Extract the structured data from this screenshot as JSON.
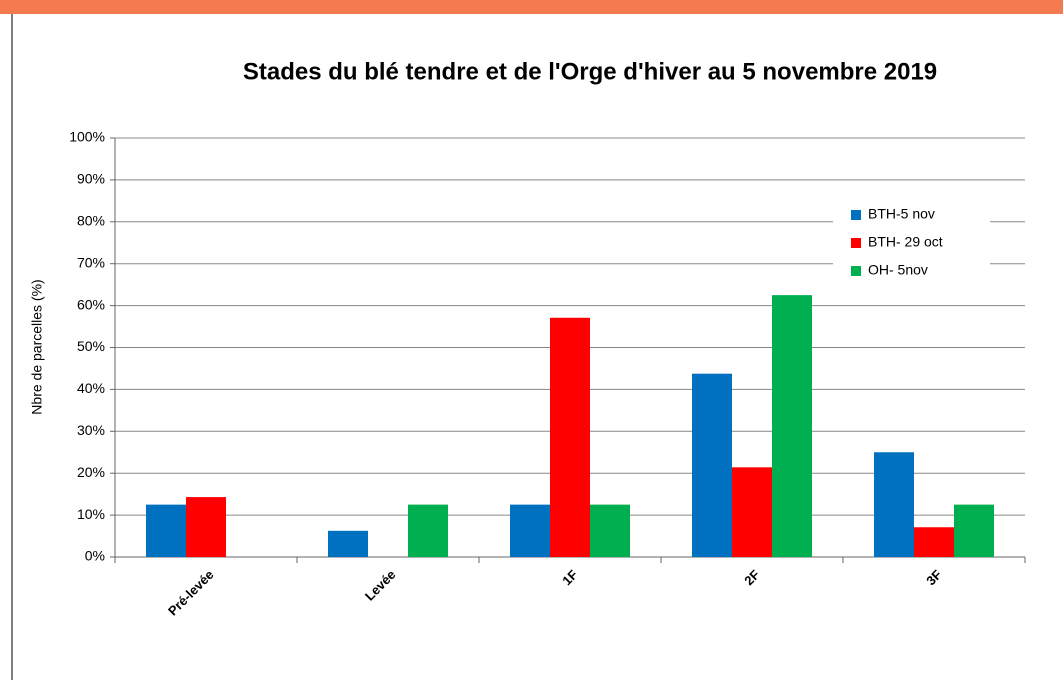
{
  "chart_data": {
    "type": "bar",
    "title": "Stades du blé tendre et de l'Orge d'hiver au 5 novembre 2019",
    "y_label": "Nbre de parcelles (%)",
    "categories": [
      "Pré-levée",
      "Levée",
      "1F",
      "2F",
      "3F"
    ],
    "series": [
      {
        "name": "BTH-5 nov",
        "color": "#0070c0",
        "values": [
          12.5,
          6.25,
          12.5,
          43.75,
          25
        ]
      },
      {
        "name": "BTH- 29 oct",
        "color": "#ff0000",
        "values": [
          14.3,
          0,
          57.1,
          21.4,
          7.1
        ]
      },
      {
        "name": "OH- 5nov",
        "color": "#00b050",
        "values": [
          0,
          12.5,
          12.5,
          62.5,
          12.5
        ]
      }
    ],
    "ylim": [
      0,
      100
    ],
    "yticks": [
      {
        "value": 0,
        "label": "0%"
      },
      {
        "value": 10,
        "label": "10%"
      },
      {
        "value": 20,
        "label": "20%"
      },
      {
        "value": 30,
        "label": "30%"
      },
      {
        "value": 40,
        "label": "40%"
      },
      {
        "value": 50,
        "label": "50%"
      },
      {
        "value": 60,
        "label": "60%"
      },
      {
        "value": 70,
        "label": "70%"
      },
      {
        "value": 80,
        "label": "80%"
      },
      {
        "value": 90,
        "label": "90%"
      },
      {
        "value": 100,
        "label": "100%"
      }
    ],
    "grid": true,
    "legend": "upper right"
  }
}
